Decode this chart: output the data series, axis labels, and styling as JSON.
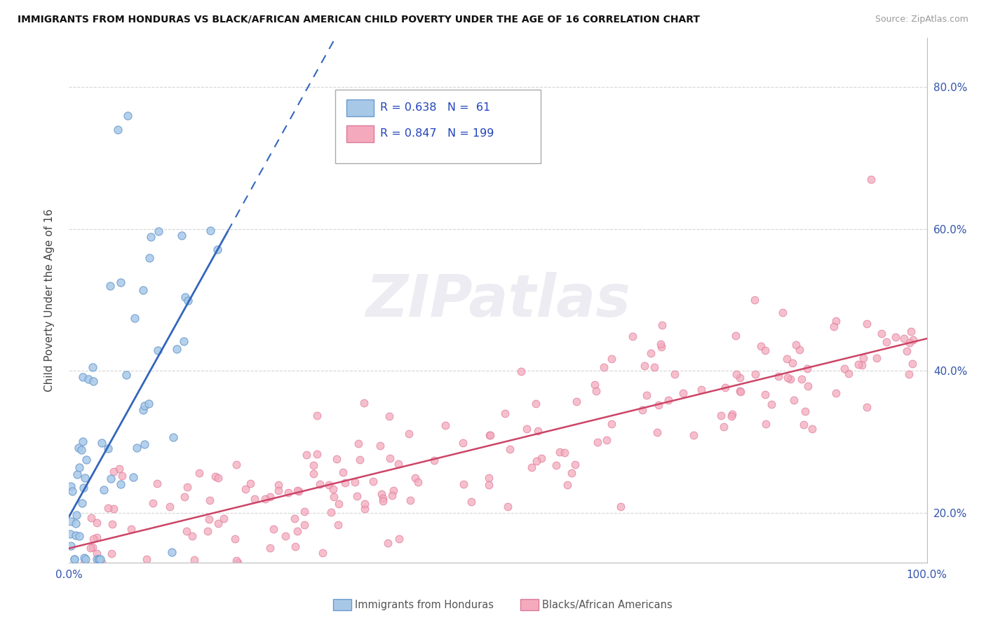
{
  "title": "IMMIGRANTS FROM HONDURAS VS BLACK/AFRICAN AMERICAN CHILD POVERTY UNDER THE AGE OF 16 CORRELATION CHART",
  "source": "Source: ZipAtlas.com",
  "ylabel": "Child Poverty Under the Age of 16",
  "xlim": [
    0.0,
    1.0
  ],
  "ylim": [
    0.13,
    0.87
  ],
  "blue_color": "#A8C8E8",
  "blue_edge": "#6699CC",
  "pink_color": "#F4AABC",
  "pink_edge": "#DD7799",
  "blue_R": 0.638,
  "blue_N": 61,
  "pink_R": 0.847,
  "pink_N": 199,
  "legend_text_color": "#2244BB",
  "watermark": "ZIPatlas",
  "blue_line_color": "#3366BB",
  "pink_line_color": "#CC4466"
}
